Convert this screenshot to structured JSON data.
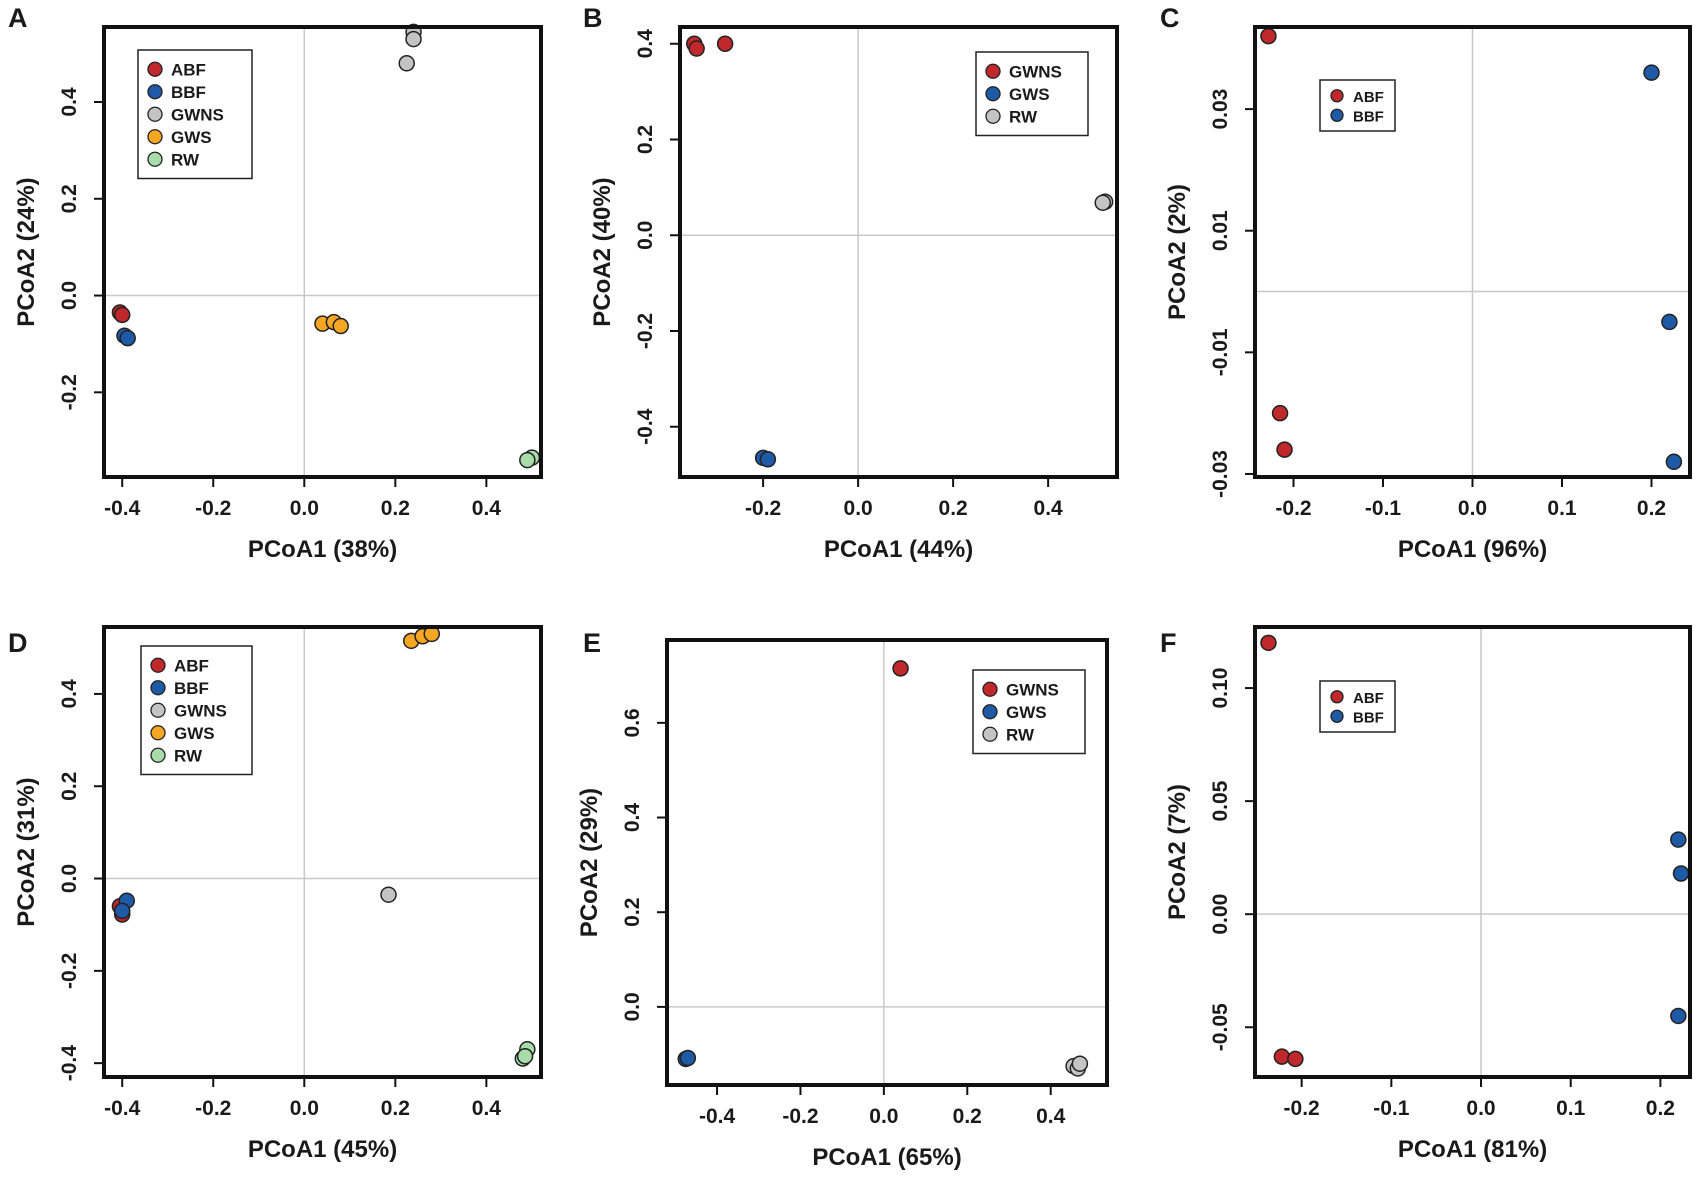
{
  "chart_data": [
    {
      "panel": "A",
      "type": "scatter",
      "xlabel": "PCoA1 (38%)",
      "ylabel": "PCoA2 (24%)",
      "xlim": [
        -0.44,
        0.52
      ],
      "ylim": [
        -0.375,
        0.555
      ],
      "xticks": [
        -0.4,
        -0.2,
        0.0,
        0.2,
        0.4
      ],
      "xtick_labels": [
        "-0.4",
        "-0.2",
        "0.0",
        "0.2",
        "0.4"
      ],
      "yticks": [
        -0.2,
        0.0,
        0.2,
        0.4
      ],
      "ytick_labels": [
        "-0.2",
        "0.0",
        "0.2",
        "0.4"
      ],
      "legend_position": "top-left",
      "series": [
        {
          "name": "ABF",
          "color": "#c0282b",
          "points": [
            [
              -0.405,
              -0.035
            ],
            [
              -0.4,
              -0.04
            ]
          ]
        },
        {
          "name": "BBF",
          "color": "#1f5aa6",
          "points": [
            [
              -0.395,
              -0.083
            ],
            [
              -0.388,
              -0.088
            ]
          ]
        },
        {
          "name": "GWNS",
          "color": "#c4c4c4",
          "points": [
            [
              0.24,
              0.545
            ],
            [
              0.24,
              0.53
            ],
            [
              0.225,
              0.48
            ]
          ]
        },
        {
          "name": "GWS",
          "color": "#f5a623",
          "points": [
            [
              0.04,
              -0.058
            ],
            [
              0.065,
              -0.055
            ],
            [
              0.08,
              -0.063
            ]
          ]
        },
        {
          "name": "RW",
          "color": "#a8dcab",
          "points": [
            [
              0.5,
              -0.335
            ],
            [
              0.49,
              -0.34
            ]
          ]
        }
      ]
    },
    {
      "panel": "B",
      "type": "scatter",
      "xlabel": "PCoA1 (44%)",
      "ylabel": "PCoA2 (40%)",
      "xlim": [
        -0.375,
        0.545
      ],
      "ylim": [
        -0.505,
        0.435
      ],
      "xticks": [
        -0.2,
        0.0,
        0.2,
        0.4
      ],
      "xtick_labels": [
        "-0.2",
        "0.0",
        "0.2",
        "0.4"
      ],
      "yticks": [
        -0.4,
        -0.2,
        0.0,
        0.2,
        0.4
      ],
      "ytick_labels": [
        "-0.4",
        "-0.2",
        "0.0",
        "0.2",
        "0.4"
      ],
      "legend_position": "top-right",
      "series": [
        {
          "name": "GWNS",
          "color": "#c0282b",
          "points": [
            [
              -0.345,
              0.4
            ],
            [
              -0.34,
              0.39
            ],
            [
              -0.28,
              0.4
            ]
          ]
        },
        {
          "name": "GWS",
          "color": "#1f5aa6",
          "points": [
            [
              -0.2,
              -0.465
            ],
            [
              -0.19,
              -0.468
            ]
          ]
        },
        {
          "name": "RW",
          "color": "#c4c4c4",
          "points": [
            [
              0.52,
              0.07
            ],
            [
              0.515,
              0.068
            ]
          ]
        }
      ]
    },
    {
      "panel": "C",
      "type": "scatter",
      "xlabel": "PCoA1 (96%)",
      "ylabel": "PCoA2 (2%)",
      "xlim": [
        -0.243,
        0.243
      ],
      "ylim": [
        -0.0305,
        0.0435
      ],
      "xticks": [
        -0.2,
        -0.1,
        0.0,
        0.1,
        0.2
      ],
      "xtick_labels": [
        "-0.2",
        "-0.1",
        "0.0",
        "0.1",
        "0.2"
      ],
      "yticks": [
        -0.03,
        -0.01,
        0.01,
        0.03
      ],
      "ytick_labels": [
        "-0.03",
        "-0.01",
        "0.01",
        "0.03"
      ],
      "legend_position": "top-left",
      "series": [
        {
          "name": "ABF",
          "color": "#c0282b",
          "points": [
            [
              -0.228,
              0.042
            ],
            [
              -0.215,
              -0.02
            ],
            [
              -0.21,
              -0.026
            ]
          ]
        },
        {
          "name": "BBF",
          "color": "#1f5aa6",
          "points": [
            [
              0.2,
              0.036
            ],
            [
              0.22,
              -0.005
            ],
            [
              0.225,
              -0.028
            ]
          ]
        }
      ]
    },
    {
      "panel": "D",
      "type": "scatter",
      "xlabel": "PCoA1 (45%)",
      "ylabel": "PCoA2 (31%)",
      "xlim": [
        -0.44,
        0.52
      ],
      "ylim": [
        -0.43,
        0.545
      ],
      "xticks": [
        -0.4,
        -0.2,
        0.0,
        0.2,
        0.4
      ],
      "xtick_labels": [
        "-0.4",
        "-0.2",
        "0.0",
        "0.2",
        "0.4"
      ],
      "yticks": [
        -0.4,
        -0.2,
        0.0,
        0.2,
        0.4
      ],
      "ytick_labels": [
        "-0.4",
        "-0.2",
        "0.0",
        "0.2",
        "0.4"
      ],
      "legend_position": "top-left",
      "series": [
        {
          "name": "ABF",
          "color": "#c0282b",
          "points": [
            [
              -0.405,
              -0.06
            ],
            [
              -0.4,
              -0.078
            ]
          ]
        },
        {
          "name": "BBF",
          "color": "#1f5aa6",
          "points": [
            [
              -0.39,
              -0.048
            ],
            [
              -0.4,
              -0.07
            ]
          ]
        },
        {
          "name": "GWNS",
          "color": "#c4c4c4",
          "points": [
            [
              0.185,
              -0.035
            ]
          ]
        },
        {
          "name": "GWS",
          "color": "#f5a623",
          "points": [
            [
              0.235,
              0.515
            ],
            [
              0.26,
              0.525
            ],
            [
              0.28,
              0.53
            ]
          ]
        },
        {
          "name": "RW",
          "color": "#a8dcab",
          "points": [
            [
              0.49,
              -0.37
            ],
            [
              0.48,
              -0.39
            ],
            [
              0.485,
              -0.385
            ]
          ]
        }
      ]
    },
    {
      "panel": "E",
      "type": "scatter",
      "xlabel": "PCoA1 (65%)",
      "ylabel": "PCoA2 (29%)",
      "xlim": [
        -0.52,
        0.535
      ],
      "ylim": [
        -0.165,
        0.775
      ],
      "xticks": [
        -0.4,
        -0.2,
        0.0,
        0.2,
        0.4
      ],
      "xtick_labels": [
        "-0.4",
        "-0.2",
        "0.0",
        "0.2",
        "0.4"
      ],
      "yticks": [
        0.0,
        0.2,
        0.4,
        0.6
      ],
      "ytick_labels": [
        "0.0",
        "0.2",
        "0.4",
        "0.6"
      ],
      "legend_position": "top-right",
      "series": [
        {
          "name": "GWNS",
          "color": "#c0282b",
          "points": [
            [
              0.04,
              0.715
            ]
          ]
        },
        {
          "name": "GWS",
          "color": "#1f5aa6",
          "points": [
            [
              -0.475,
              -0.11
            ],
            [
              -0.47,
              -0.108
            ]
          ]
        },
        {
          "name": "RW",
          "color": "#c4c4c4",
          "points": [
            [
              0.455,
              -0.125
            ],
            [
              0.465,
              -0.13
            ],
            [
              0.47,
              -0.12
            ]
          ]
        }
      ]
    },
    {
      "panel": "F",
      "type": "scatter",
      "xlabel": "PCoA1 (81%)",
      "ylabel": "PCoA2 (7%)",
      "xlim": [
        -0.252,
        0.233
      ],
      "ylim": [
        -0.072,
        0.127
      ],
      "xticks": [
        -0.2,
        -0.1,
        0.0,
        0.1,
        0.2
      ],
      "xtick_labels": [
        "-0.2",
        "-0.1",
        "0.0",
        "0.1",
        "0.2"
      ],
      "yticks": [
        -0.05,
        0.0,
        0.05,
        0.1
      ],
      "ytick_labels": [
        "-0.05",
        "0.00",
        "0.05",
        "0.10"
      ],
      "legend_position": "top-left",
      "series": [
        {
          "name": "ABF",
          "color": "#c0282b",
          "points": [
            [
              -0.237,
              0.12
            ],
            [
              -0.222,
              -0.063
            ],
            [
              -0.207,
              -0.064
            ]
          ]
        },
        {
          "name": "BBF",
          "color": "#1f5aa6",
          "points": [
            [
              0.22,
              0.033
            ],
            [
              0.223,
              0.018
            ],
            [
              0.22,
              -0.045
            ]
          ]
        }
      ]
    }
  ]
}
